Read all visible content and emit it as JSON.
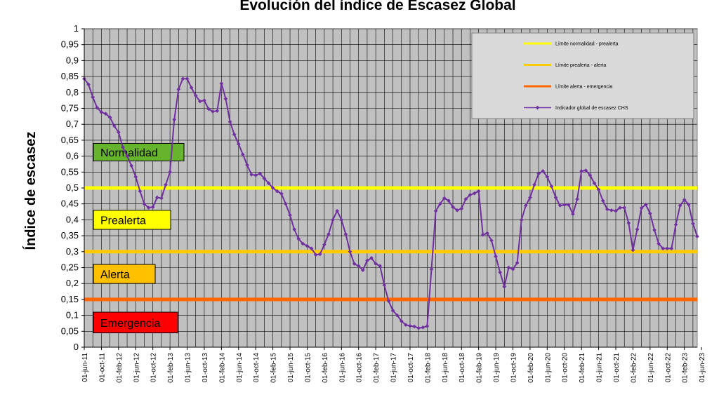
{
  "chart_data": {
    "type": "line",
    "title": "Evolución del índice de Escasez Global",
    "ylabel": "Índice de escasez",
    "ylim": [
      0,
      1
    ],
    "y_ticks": [
      "0",
      "0,05",
      "0,1",
      "0,15",
      "0,2",
      "0,25",
      "0,3",
      "0,35",
      "0,4",
      "0,45",
      "0,5",
      "0,55",
      "0,6",
      "0,65",
      "0,7",
      "0,75",
      "0,8",
      "0,85",
      "0,9",
      "0,95",
      "1"
    ],
    "x_ticks": [
      "01-jun-11",
      "01-oct-11",
      "01-feb-12",
      "01-jun-12",
      "01-oct-12",
      "01-feb-13",
      "01-jun-13",
      "01-oct-13",
      "01-feb-14",
      "01-jun-14",
      "01-oct-14",
      "01-feb-15",
      "01-jun-15",
      "01-oct-15",
      "01-feb-16",
      "01-jun-16",
      "01-oct-16",
      "01-feb-17",
      "01-jun-17",
      "01-oct-17",
      "01-feb-18",
      "01-jun-18",
      "01-oct-18",
      "01-feb-19",
      "01-jun-19",
      "01-oct-19",
      "01-feb-20",
      "01-jun-20",
      "01-oct-20",
      "01-feb-21",
      "01-jun-21",
      "01-oct-21",
      "01-feb-22",
      "01-jun-22",
      "01-oct-22",
      "01-feb-23",
      "01-jun-23"
    ],
    "grid": true,
    "legend_position": "top-right",
    "background_color": "#c0c0c0",
    "thresholds": [
      {
        "name": "Límite normalidad - prealerta",
        "value": 0.5,
        "color": "#ffff00"
      },
      {
        "name": "Límite prealerta - alerta",
        "value": 0.3,
        "color": "#ffcc00"
      },
      {
        "name": "Límite alerta - emergencia",
        "value": 0.15,
        "color": "#ff6600"
      }
    ],
    "zones": [
      {
        "label": "Normalidad",
        "color": "#66b32e",
        "y_top": 0.64,
        "y_bottom": 0.585
      },
      {
        "label": "Prealerta",
        "color": "#ffff00",
        "y_top": 0.43,
        "y_bottom": 0.37
      },
      {
        "label": "Alerta",
        "color": "#ffc000",
        "y_top": 0.26,
        "y_bottom": 0.2
      },
      {
        "label": "Emergencia",
        "color": "#ff0000",
        "y_top": 0.11,
        "y_bottom": 0.045
      }
    ],
    "series": [
      {
        "name": "Indicador global de escasez CHS",
        "color": "#7030a0",
        "values": [
          0.843,
          0.825,
          0.785,
          0.752,
          0.738,
          0.733,
          0.722,
          0.695,
          0.675,
          0.628,
          0.6,
          0.57,
          0.535,
          0.49,
          0.45,
          0.438,
          0.44,
          0.47,
          0.468,
          0.51,
          0.55,
          0.715,
          0.81,
          0.843,
          0.843,
          0.815,
          0.79,
          0.772,
          0.775,
          0.748,
          0.74,
          0.742,
          0.828,
          0.78,
          0.708,
          0.668,
          0.638,
          0.605,
          0.572,
          0.542,
          0.54,
          0.545,
          0.53,
          0.515,
          0.5,
          0.49,
          0.482,
          0.45,
          0.415,
          0.37,
          0.34,
          0.325,
          0.318,
          0.31,
          0.29,
          0.292,
          0.322,
          0.355,
          0.4,
          0.428,
          0.4,
          0.355,
          0.3,
          0.262,
          0.255,
          0.242,
          0.272,
          0.28,
          0.262,
          0.255,
          0.195,
          0.145,
          0.115,
          0.1,
          0.082,
          0.07,
          0.067,
          0.065,
          0.06,
          0.062,
          0.066,
          0.245,
          0.428,
          0.45,
          0.468,
          0.46,
          0.44,
          0.43,
          0.435,
          0.465,
          0.478,
          0.483,
          0.49,
          0.353,
          0.358,
          0.335,
          0.285,
          0.235,
          0.19,
          0.25,
          0.245,
          0.265,
          0.4,
          0.445,
          0.47,
          0.51,
          0.545,
          0.553,
          0.535,
          0.505,
          0.47,
          0.445,
          0.447,
          0.447,
          0.418,
          0.465,
          0.553,
          0.555,
          0.54,
          0.515,
          0.495,
          0.46,
          0.433,
          0.43,
          0.428,
          0.438,
          0.438,
          0.39,
          0.305,
          0.37,
          0.437,
          0.448,
          0.42,
          0.368,
          0.325,
          0.31,
          0.31,
          0.31,
          0.385,
          0.445,
          0.463,
          0.448,
          0.388,
          0.348
        ]
      }
    ]
  }
}
